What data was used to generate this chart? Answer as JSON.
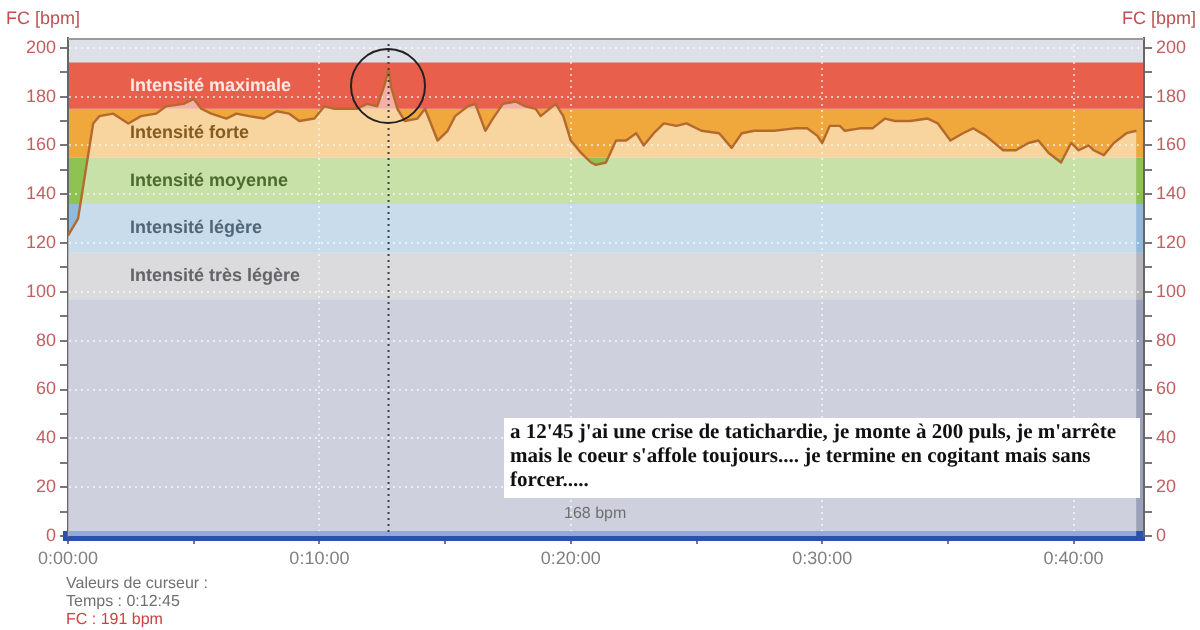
{
  "chart_data": {
    "type": "line",
    "ylabel": "FC [bpm]",
    "y2label": "FC [bpm]",
    "x": [
      0,
      0.4,
      1.0,
      1.25,
      1.8,
      2.4,
      2.9,
      3.5,
      3.9,
      4.6,
      5.0,
      5.3,
      5.7,
      6.3,
      6.7,
      7.2,
      7.8,
      8.3,
      8.8,
      9.2,
      9.8,
      10.2,
      10.6,
      11.2,
      11.5,
      11.9,
      12.3,
      12.6,
      12.75,
      12.85,
      13.1,
      13.4,
      13.9,
      14.2,
      14.7,
      15.1,
      15.4,
      15.9,
      16.2,
      16.6,
      16.9,
      17.3,
      17.8,
      18.2,
      18.6,
      18.8,
      19.4,
      19.7,
      20.0,
      20.4,
      20.8,
      21.0,
      21.4,
      21.8,
      22.2,
      22.6,
      22.9,
      23.3,
      23.7,
      24.2,
      24.6,
      25.2,
      25.9,
      26.4,
      26.8,
      27.3,
      28.1,
      28.9,
      29.4,
      29.8,
      30.0,
      30.3,
      30.7,
      30.9,
      31.5,
      32.0,
      32.5,
      32.9,
      33.5,
      34.2,
      34.6,
      35.1,
      35.6,
      36.0,
      36.5,
      37.2,
      37.7,
      38.2,
      38.6,
      39.0,
      39.5,
      39.9,
      40.2,
      40.6,
      40.8,
      41.2,
      41.6,
      42.1,
      42.5
    ],
    "values": [
      123,
      130,
      169,
      172,
      173,
      169,
      172,
      173,
      176,
      177,
      179,
      175,
      173,
      171,
      173,
      172,
      171,
      174,
      173,
      170,
      171,
      176,
      175,
      175,
      175,
      177,
      176,
      185,
      191,
      184,
      175,
      170,
      171,
      175,
      162,
      166,
      172,
      176,
      177,
      166,
      171,
      177,
      178,
      176,
      175,
      172,
      177,
      172,
      162,
      157,
      153,
      152,
      153,
      162,
      162,
      165,
      160,
      165,
      169,
      168,
      169,
      166,
      165,
      159,
      165,
      166,
      166,
      167,
      167,
      164,
      161,
      168,
      168,
      166,
      167,
      167,
      171,
      170,
      170,
      171,
      169,
      162,
      165,
      167,
      164,
      158,
      158,
      161,
      162,
      157,
      153,
      161,
      158,
      160,
      158,
      156,
      161,
      165,
      166
    ],
    "color": "#b46a2c",
    "xlim": [
      0,
      42.8
    ],
    "xticks": [
      {
        "value": 0,
        "label": "0:00:00"
      },
      {
        "value": 5,
        "label": null
      },
      {
        "value": 10,
        "label": "0:10:00"
      },
      {
        "value": 15,
        "label": null
      },
      {
        "value": 20,
        "label": "0:20:00"
      },
      {
        "value": 25,
        "label": null
      },
      {
        "value": 30,
        "label": "0:30:00"
      },
      {
        "value": 35,
        "label": null
      },
      {
        "value": 40,
        "label": "0:40:00"
      }
    ],
    "ylim": [
      0,
      204
    ],
    "yticks": [
      0,
      {
        "value": 10,
        "label": null
      },
      20,
      {
        "value": 30,
        "label": null
      },
      40,
      {
        "value": 50,
        "label": null
      },
      60,
      {
        "value": 70,
        "label": null
      },
      80,
      {
        "value": 90,
        "label": null
      },
      100,
      {
        "value": 110,
        "label": null
      },
      120,
      {
        "value": 130,
        "label": null
      },
      140,
      {
        "value": 150,
        "label": null
      },
      160,
      {
        "value": 170,
        "label": null
      },
      180,
      {
        "value": 190,
        "label": null
      },
      200
    ],
    "y2lim": [
      0,
      204
    ],
    "y2ticks": [
      0,
      {
        "value": 10,
        "label": null
      },
      20,
      {
        "value": 30,
        "label": null
      },
      40,
      {
        "value": 50,
        "label": null
      },
      60,
      {
        "value": 70,
        "label": null
      },
      80,
      {
        "value": 90,
        "label": null
      },
      100,
      {
        "value": 110,
        "label": null
      },
      120,
      {
        "value": 130,
        "label": null
      },
      140,
      {
        "value": 150,
        "label": null
      },
      160,
      {
        "value": 170,
        "label": null
      },
      180,
      {
        "value": 190,
        "label": null
      },
      200
    ],
    "grid": true,
    "bands": [
      {
        "axis": "y",
        "from": 0,
        "to": 97,
        "color": "#9ca2ba"
      },
      {
        "axis": "y",
        "from": 97,
        "to": 116,
        "label": "Intensité très légère",
        "color": "#b6b6bc"
      },
      {
        "axis": "y",
        "from": 116,
        "to": 136,
        "label": "Intensité légère",
        "color": "#91b9d9"
      },
      {
        "axis": "y",
        "from": 136,
        "to": 155,
        "label": "Intensité moyenne",
        "color": "#8ec353"
      },
      {
        "axis": "y",
        "from": 155,
        "to": 175,
        "label": "Intensité forte",
        "color": "#f0a83c"
      },
      {
        "axis": "y",
        "from": 175,
        "to": 194,
        "label": "Intensité maximale",
        "color": "#e8604c"
      }
    ],
    "ref_lines": [
      {
        "axis": "x",
        "value": 12.75,
        "line_style": "dotted",
        "color": "#404040"
      }
    ],
    "annotations": [
      "a 12'45 j'ai une crise de tatichardie, je monte à 200 puls, je m'arrête mais le coeur s'affole toujours.... je termine en cogitant mais sans forcer.....",
      "168 bpm",
      "Valeurs de curseur :",
      "Temps : 0:12:45",
      "FC : 191 bpm"
    ]
  }
}
